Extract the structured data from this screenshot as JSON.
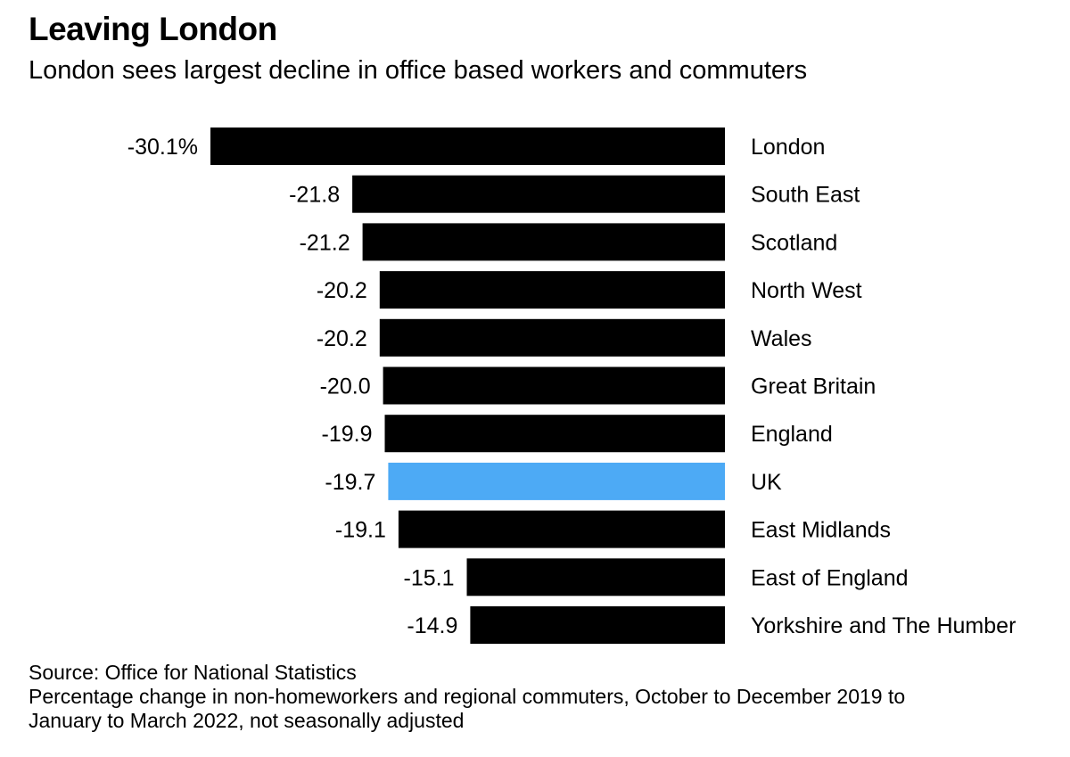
{
  "header": {
    "title": "Leaving London",
    "subtitle": "London sees largest decline in office based workers and commuters"
  },
  "footer": {
    "source": "Source: Office for National Statistics",
    "note_line1": "Percentage change in non-homeworkers and regional commuters, October to December 2019 to",
    "note_line2": "January to March 2022, not seasonally adjusted"
  },
  "colors": {
    "bar": "#000000",
    "highlight": "#4DAAF5",
    "background": "#ffffff"
  },
  "chart_data": {
    "type": "bar",
    "orientation": "horizontal",
    "title": "Leaving London",
    "subtitle": "London sees largest decline in office based workers and commuters",
    "categories": [
      "London",
      "South East",
      "Scotland",
      "North West",
      "Wales",
      "Great Britain",
      "England",
      "UK",
      "East Midlands",
      "East of England",
      "Yorkshire and The Humber"
    ],
    "values": [
      -30.1,
      -21.8,
      -21.2,
      -20.2,
      -20.2,
      -20.0,
      -19.9,
      -19.7,
      -19.1,
      -15.1,
      -14.9
    ],
    "value_labels": [
      "-30.1%",
      "-21.8",
      "-21.2",
      "-20.2",
      "-20.2",
      "-20.0",
      "-19.9",
      "-19.7",
      "-19.1",
      "-15.1",
      "-14.9"
    ],
    "highlight_category": "UK",
    "xlim": [
      -30.1,
      0
    ],
    "grid": false,
    "legend": false
  }
}
